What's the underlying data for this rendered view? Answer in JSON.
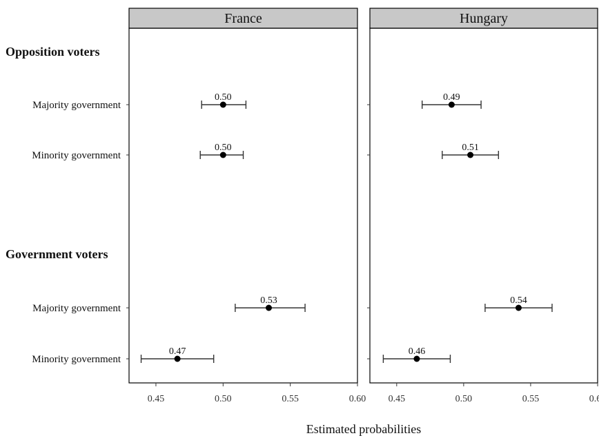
{
  "chart_data": {
    "type": "scatter",
    "title": "",
    "xlabel": "Estimated probabilities",
    "xlim": [
      0.43,
      0.6
    ],
    "xticks": [
      "0.45",
      "0.50",
      "0.55",
      "0.60"
    ],
    "groups": [
      {
        "label": "Opposition voters",
        "rows": [
          "Majority government",
          "Minority government"
        ]
      },
      {
        "label": "Government voters",
        "rows": [
          "Majority government",
          "Minority government"
        ]
      }
    ],
    "panels": [
      {
        "name": "France",
        "points": [
          {
            "group": "Opposition voters",
            "row": "Majority government",
            "value": 0.5,
            "label": "0.50",
            "ci": [
              0.484,
              0.517
            ]
          },
          {
            "group": "Opposition voters",
            "row": "Minority government",
            "value": 0.5,
            "label": "0.50",
            "ci": [
              0.483,
              0.515
            ]
          },
          {
            "group": "Government voters",
            "row": "Majority government",
            "value": 0.534,
            "label": "0.53",
            "ci": [
              0.509,
              0.561
            ]
          },
          {
            "group": "Government voters",
            "row": "Minority government",
            "value": 0.466,
            "label": "0.47",
            "ci": [
              0.439,
              0.493
            ]
          }
        ]
      },
      {
        "name": "Hungary",
        "points": [
          {
            "group": "Opposition voters",
            "row": "Majority government",
            "value": 0.491,
            "label": "0.49",
            "ci": [
              0.469,
              0.513
            ]
          },
          {
            "group": "Opposition voters",
            "row": "Minority government",
            "value": 0.505,
            "label": "0.51",
            "ci": [
              0.484,
              0.526
            ]
          },
          {
            "group": "Government voters",
            "row": "Majority government",
            "value": 0.541,
            "label": "0.54",
            "ci": [
              0.516,
              0.566
            ]
          },
          {
            "group": "Government voters",
            "row": "Minority government",
            "value": 0.465,
            "label": "0.46",
            "ci": [
              0.44,
              0.49
            ]
          }
        ]
      }
    ],
    "colors": {
      "point": "#000000",
      "errorbar": "#333333",
      "strip": "#c8c8c8",
      "border": "#000000"
    },
    "grid": false,
    "legend": "none"
  }
}
